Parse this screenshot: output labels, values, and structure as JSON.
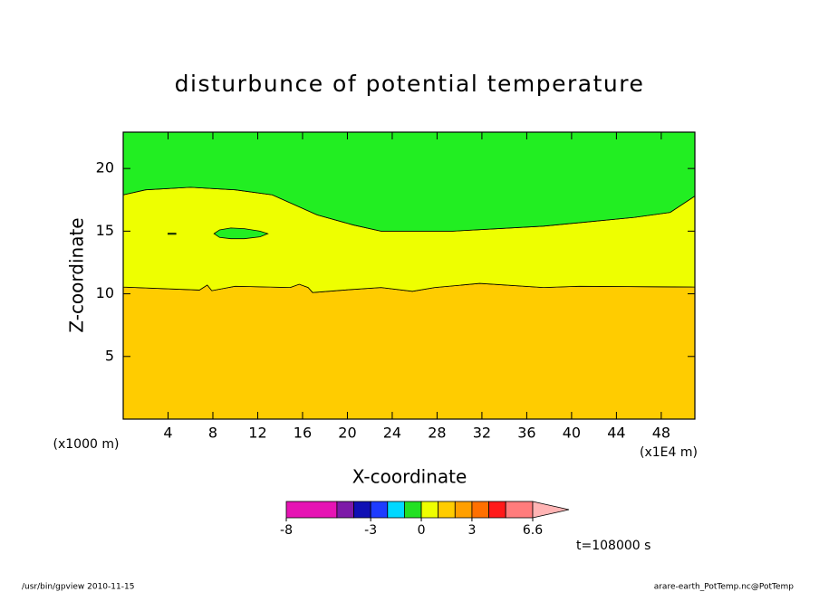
{
  "chart_data": {
    "type": "contour",
    "title": "disturbunce of potential temperature",
    "xlabel": "X-coordinate",
    "ylabel": "Z-coordinate",
    "xunit": "(x1E4 m)",
    "yunit": "(x1000 m)",
    "xlim": [
      0,
      51
    ],
    "ylim": [
      0,
      22.9
    ],
    "xticks": [
      4,
      8,
      12,
      16,
      20,
      24,
      28,
      32,
      36,
      40,
      44,
      48
    ],
    "yticks": [
      5,
      10,
      15,
      20
    ],
    "regions": [
      {
        "color": "#ffcc00",
        "x": [
          0,
          6.8,
          7.5,
          7.9,
          10.0,
          14.9,
          15.7,
          16.5,
          16.9,
          19.7,
          23.0,
          25.8,
          27.8,
          31.8,
          37.5,
          40.7,
          51,
          51,
          0
        ],
        "y": [
          10.54,
          10.3,
          10.7,
          10.25,
          10.6,
          10.5,
          10.76,
          10.5,
          10.1,
          10.3,
          10.5,
          10.2,
          10.5,
          10.83,
          10.5,
          10.6,
          10.54,
          0,
          0
        ]
      },
      {
        "color": "#eeff00",
        "x": [
          0,
          6.8,
          7.5,
          7.9,
          10.0,
          14.9,
          15.7,
          16.5,
          16.9,
          19.7,
          23.0,
          25.8,
          27.8,
          31.8,
          37.5,
          40.7,
          51,
          51,
          48.8,
          45.6,
          37.5,
          29.4,
          23.0,
          20.5,
          17.3,
          13.3,
          10.0,
          6.0,
          2.0,
          0
        ],
        "y": [
          10.54,
          10.3,
          10.7,
          10.25,
          10.6,
          10.5,
          10.76,
          10.5,
          10.1,
          10.3,
          10.5,
          10.2,
          10.5,
          10.83,
          10.5,
          10.6,
          10.54,
          17.8,
          16.5,
          16.1,
          15.4,
          15.0,
          15.0,
          15.5,
          16.3,
          17.9,
          18.3,
          18.5,
          18.3,
          17.9
        ]
      },
      {
        "color": "#22ee22",
        "x": [
          0,
          2.0,
          6.0,
          10.0,
          13.3,
          17.3,
          20.5,
          23.0,
          29.4,
          37.5,
          45.6,
          48.8,
          51,
          51,
          0
        ],
        "y": [
          17.9,
          18.3,
          18.5,
          18.3,
          17.9,
          16.3,
          15.5,
          15.0,
          15.0,
          15.4,
          16.1,
          16.5,
          17.8,
          22.9,
          22.9
        ]
      },
      {
        "color": "#22ee22",
        "x": [
          8.1,
          8.6,
          9.6,
          10.8,
          12.2,
          12.9,
          12.2,
          10.8,
          9.6,
          8.6
        ],
        "y": [
          14.8,
          15.1,
          15.25,
          15.2,
          15.0,
          14.8,
          14.55,
          14.4,
          14.4,
          14.5
        ]
      },
      {
        "color": "#22ee22",
        "x": [
          4.0,
          4.7,
          4.7,
          4.0
        ],
        "y": [
          14.83,
          14.83,
          14.75,
          14.75
        ]
      }
    ],
    "colorbar": {
      "levels": [
        -8,
        -5,
        -4,
        -3,
        -2,
        -1,
        0,
        1,
        2,
        3,
        4,
        5,
        6.6
      ],
      "colors": [
        "#e614b4",
        "#7d1aa8",
        "#1010b4",
        "#1e3cff",
        "#00d8ff",
        "#22e022",
        "#eeff00",
        "#ffcc00",
        "#ff9f00",
        "#ff7000",
        "#ff1a1a",
        "#ff7c7c"
      ],
      "over_color": "#ffb4b4",
      "ticks": [
        -8,
        -3,
        0,
        3,
        6.6
      ]
    },
    "time_label": "t=108000 s",
    "footer_left": "/usr/bin/gpview  2010-11-15",
    "footer_right": "arare-earth_PotTemp.nc@PotTemp"
  }
}
